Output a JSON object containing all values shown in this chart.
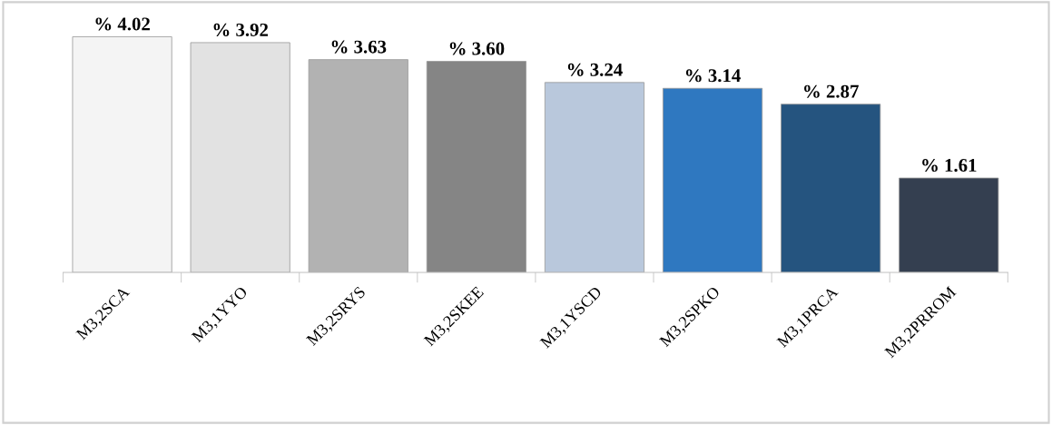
{
  "chart_data": {
    "type": "bar",
    "categories": [
      "M3,2SCA",
      "M3,1YYO",
      "M3,2SRYS",
      "M3,2SKEE",
      "M3,1YSCD",
      "M3,2SPKO",
      "M3,1PRCA",
      "M3,2PRROM"
    ],
    "values": [
      4.02,
      3.92,
      3.63,
      3.6,
      3.24,
      3.14,
      2.87,
      1.61
    ],
    "value_labels": [
      "% 4.02",
      "% 3.92",
      "% 3.63",
      "% 3.60",
      "% 3.24",
      "% 3.14",
      "% 2.87",
      "% 1.61"
    ],
    "colors": [
      "#f4f4f4",
      "#e2e2e2",
      "#b2b2b2",
      "#858585",
      "#b9c8dc",
      "#2f78c0",
      "#25547f",
      "#343f50"
    ],
    "grid": false,
    "legend": false
  }
}
